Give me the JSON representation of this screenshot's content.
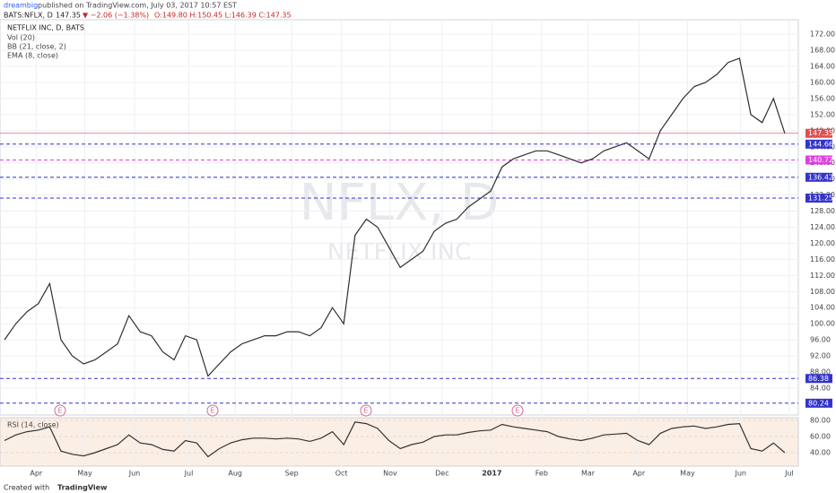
{
  "header": {
    "author": "dreambig",
    "published": " published on TradingView.com, July 03, 2017 10:57 EST",
    "symbol": "BATS:NFLX, D",
    "price": "147.35",
    "change": "▼ −2.06 (−1.38%)",
    "ohlc": "O:149.80 H:150.45 L:146.39 C:147.35"
  },
  "footer": {
    "created": "Created with",
    "brand": "TradingView"
  },
  "chart_data": [
    {
      "type": "line",
      "title": "NETFLIX INC, D, BATS",
      "indicators": [
        "Vol (20)",
        "BB (21, close, 2)",
        "EMA (8, close)"
      ],
      "watermark": [
        "NFLX, D",
        "NETFLIX INC"
      ],
      "earnings_markers": [
        "E",
        "E",
        "E",
        "E"
      ],
      "x": [
        0,
        1,
        2,
        3,
        4,
        5,
        6,
        7,
        8,
        9,
        10,
        11,
        12,
        13,
        14,
        15,
        16,
        17,
        18,
        19,
        20,
        21,
        22,
        23,
        24,
        25,
        26,
        27,
        28,
        29,
        30,
        31,
        32,
        33,
        34,
        35,
        36,
        37,
        38,
        39,
        40,
        41,
        42,
        43,
        44,
        45,
        46,
        47,
        48,
        49,
        50,
        51,
        52,
        53,
        54,
        55,
        56,
        57,
        58,
        59,
        60,
        61,
        62,
        63,
        64,
        65,
        66,
        67,
        68,
        69
      ],
      "xlim": [
        0,
        70.2
      ],
      "xticks": [
        {
          "value": 2.8,
          "label": "Apr"
        },
        {
          "value": 7.1,
          "label": "May"
        },
        {
          "value": 11.5,
          "label": "Jun"
        },
        {
          "value": 16.3,
          "label": "Jul"
        },
        {
          "value": 20.4,
          "label": "Aug"
        },
        {
          "value": 25.4,
          "label": "Sep"
        },
        {
          "value": 29.8,
          "label": "Oct"
        },
        {
          "value": 34.1,
          "label": "Nov"
        },
        {
          "value": 38.7,
          "label": "Dec"
        },
        {
          "value": 43.1,
          "label": "2017"
        },
        {
          "value": 47.5,
          "label": "Feb"
        },
        {
          "value": 51.6,
          "label": "Mar"
        },
        {
          "value": 56.1,
          "label": "Apr"
        },
        {
          "value": 60.4,
          "label": "May"
        },
        {
          "value": 65.1,
          "label": "Jun"
        },
        {
          "value": 69.4,
          "label": "Jul"
        }
      ],
      "series": [
        {
          "name": "NFLX",
          "color": "#2f2f2f",
          "values": [
            96,
            100,
            103,
            105,
            110,
            96,
            92,
            90,
            91,
            93,
            95,
            102,
            98,
            97,
            93,
            91,
            97,
            96,
            87,
            90,
            93,
            95,
            96,
            97,
            97,
            98,
            98,
            97,
            99,
            104,
            100,
            122,
            126,
            124,
            119,
            114,
            116,
            118,
            123,
            125,
            126,
            129,
            131,
            133,
            139,
            141,
            142,
            143,
            143,
            142,
            141,
            140,
            141,
            143,
            144,
            145,
            143,
            141,
            148,
            152,
            156,
            159,
            160,
            162,
            165,
            166,
            152,
            150,
            156,
            147.35
          ]
        }
      ],
      "ylim": [
        77.3,
        175.6
      ],
      "yticks": [
        {
          "value": 84,
          "label": "84.00"
        },
        {
          "value": 88,
          "label": "88.00"
        },
        {
          "value": 92,
          "label": "92.00"
        },
        {
          "value": 96,
          "label": "96.00"
        },
        {
          "value": 100,
          "label": "100.00"
        },
        {
          "value": 104,
          "label": "104.00"
        },
        {
          "value": 108,
          "label": "108.00"
        },
        {
          "value": 112,
          "label": "112.00"
        },
        {
          "value": 116,
          "label": "116.00"
        },
        {
          "value": 120,
          "label": "120.00"
        },
        {
          "value": 124,
          "label": "124.00"
        },
        {
          "value": 128,
          "label": "128.00"
        },
        {
          "value": 132,
          "label": "132.00"
        },
        {
          "value": 136,
          "label": "136.00"
        },
        {
          "value": 140,
          "label": "140.00"
        },
        {
          "value": 144,
          "label": "144.00"
        },
        {
          "value": 148,
          "label": "148.00"
        },
        {
          "value": 152,
          "label": "152.00"
        },
        {
          "value": 156,
          "label": "156.00"
        },
        {
          "value": 160,
          "label": "160.00"
        },
        {
          "value": 164,
          "label": "164.00"
        },
        {
          "value": 168,
          "label": "168.00"
        },
        {
          "value": 172,
          "label": "172.00"
        }
      ],
      "levels": [
        {
          "value": 147.35,
          "color": "#e05050"
        },
        {
          "value": 144.66,
          "color": "#3333cc"
        },
        {
          "value": 140.72,
          "color": "#e040e0"
        },
        {
          "value": 136.42,
          "color": "#3333cc"
        },
        {
          "value": 131.25,
          "color": "#3333cc"
        },
        {
          "value": 86.38,
          "color": "#3333cc"
        },
        {
          "value": 80.24,
          "color": "#3333cc"
        }
      ],
      "grid": true
    },
    {
      "type": "line",
      "title": "RSI (14, close)",
      "series": [
        {
          "name": "RSI",
          "color": "#333333",
          "values": [
            55,
            62,
            66,
            68,
            72,
            42,
            38,
            36,
            40,
            45,
            50,
            62,
            52,
            50,
            44,
            42,
            55,
            52,
            35,
            45,
            52,
            56,
            58,
            58,
            57,
            58,
            57,
            54,
            58,
            66,
            50,
            78,
            76,
            70,
            55,
            45,
            50,
            53,
            60,
            62,
            62,
            65,
            67,
            68,
            75,
            72,
            70,
            68,
            66,
            60,
            57,
            55,
            58,
            62,
            63,
            64,
            55,
            50,
            64,
            70,
            72,
            73,
            70,
            72,
            75,
            76,
            45,
            42,
            52,
            40
          ]
        }
      ],
      "ylim": [
        23.3,
        83.3
      ],
      "yticks": [
        {
          "value": 40,
          "label": "40.00"
        },
        {
          "value": 60,
          "label": "60.00"
        },
        {
          "value": 80,
          "label": "80.00"
        }
      ]
    }
  ]
}
